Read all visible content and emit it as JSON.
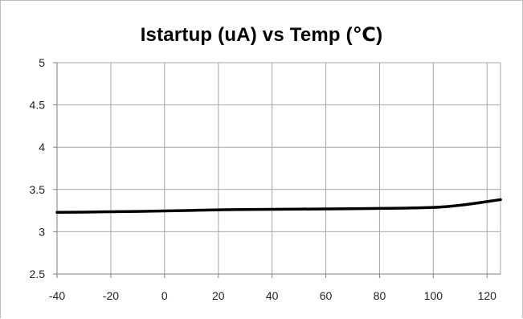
{
  "chart_data": {
    "type": "line",
    "title": "Istartup (uA) vs Temp (℃)",
    "xlabel": "",
    "ylabel": "",
    "xlim": [
      -40,
      125
    ],
    "ylim": [
      2.5,
      5
    ],
    "xticks": [
      -40,
      -20,
      0,
      20,
      40,
      60,
      80,
      100,
      120
    ],
    "yticks": [
      2.5,
      3,
      3.5,
      4,
      4.5,
      5
    ],
    "ytick_labels": [
      "2.5",
      "3",
      "3.5",
      "4",
      "4.5",
      "5"
    ],
    "grid": true,
    "legend": "none",
    "series": [
      {
        "color": "#000000",
        "x": [
          -40,
          -20,
          0,
          20,
          40,
          60,
          80,
          100,
          110,
          125
        ],
        "y": [
          3.23,
          3.235,
          3.245,
          3.26,
          3.265,
          3.27,
          3.275,
          3.285,
          3.31,
          3.38
        ]
      }
    ]
  }
}
